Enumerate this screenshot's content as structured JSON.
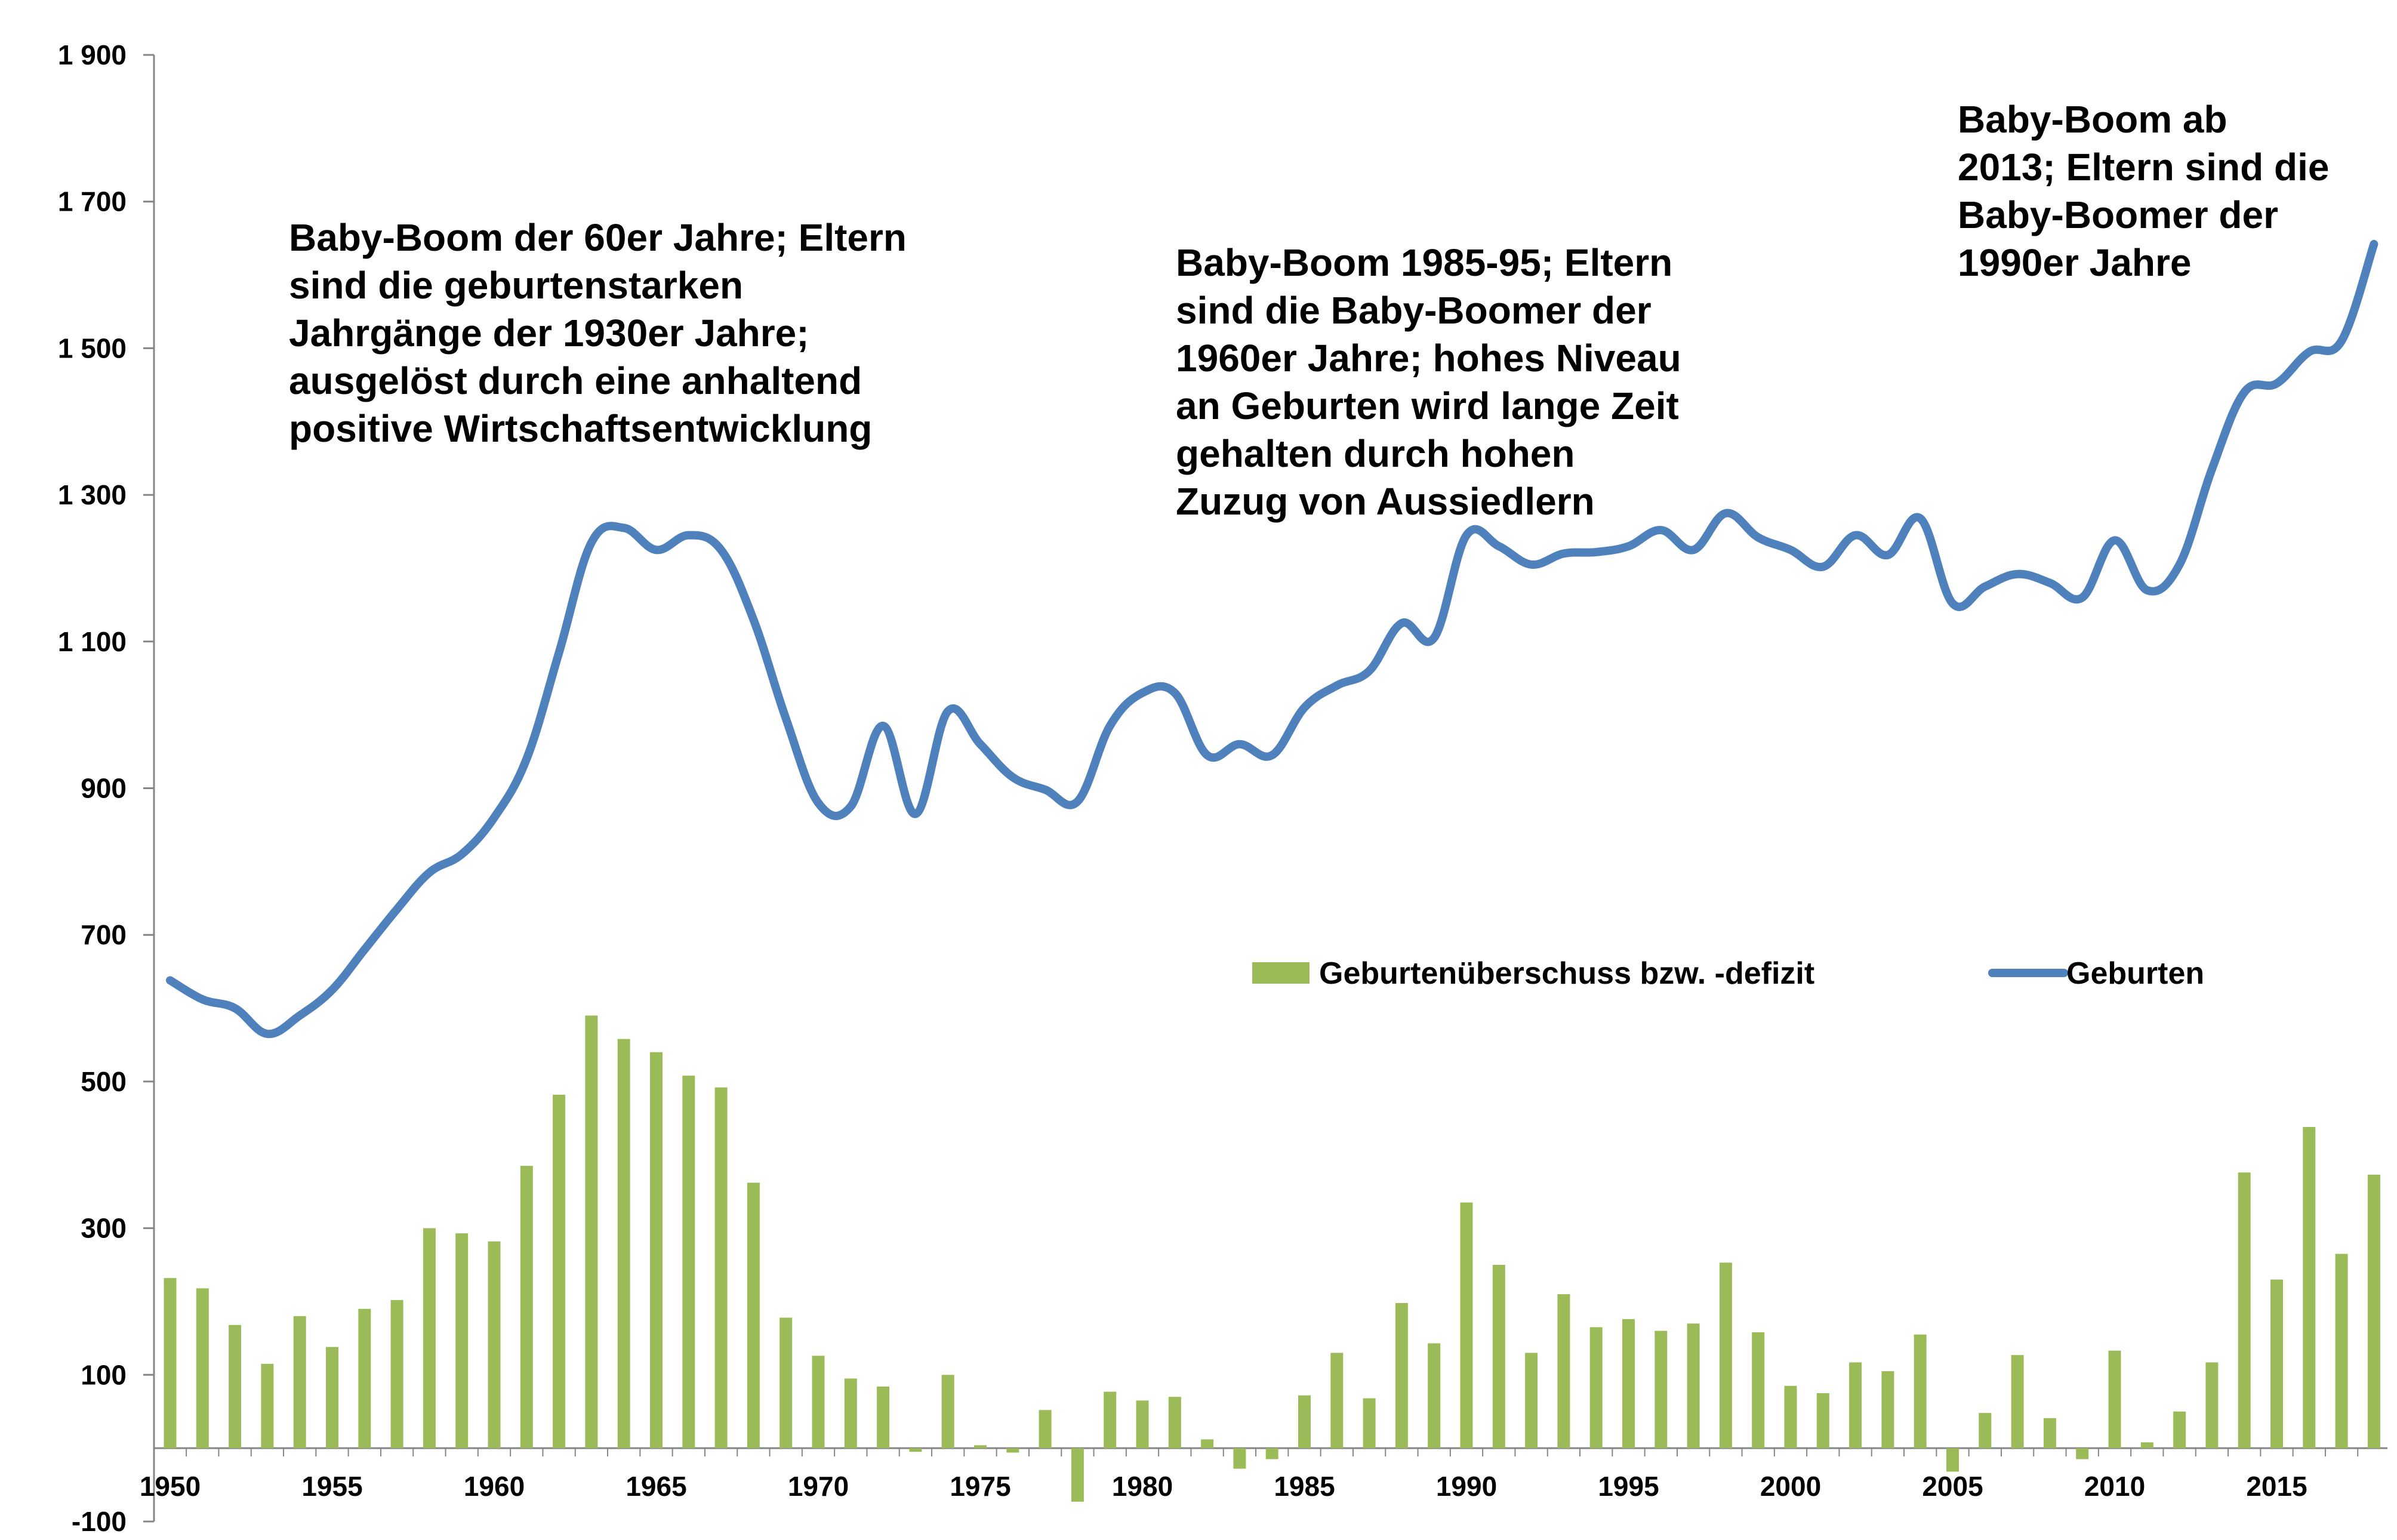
{
  "chart_data": {
    "type": "bar+line",
    "x": [
      1950,
      1951,
      1952,
      1953,
      1954,
      1955,
      1956,
      1957,
      1958,
      1959,
      1960,
      1961,
      1962,
      1963,
      1964,
      1965,
      1966,
      1967,
      1968,
      1969,
      1970,
      1971,
      1972,
      1973,
      1974,
      1975,
      1976,
      1977,
      1978,
      1979,
      1980,
      1981,
      1982,
      1983,
      1984,
      1985,
      1986,
      1987,
      1988,
      1989,
      1990,
      1991,
      1992,
      1993,
      1994,
      1995,
      1996,
      1997,
      1998,
      1999,
      2000,
      2001,
      2002,
      2003,
      2004,
      2005,
      2006,
      2007,
      2008,
      2009,
      2010,
      2011,
      2012,
      2013,
      2014,
      2015,
      2016,
      2017,
      2018
    ],
    "x_ticks": [
      "1950",
      "1955",
      "1960",
      "1965",
      "1970",
      "1975",
      "1980",
      "1985",
      "1990",
      "1995",
      "2000",
      "2005",
      "2010",
      "2015"
    ],
    "y_ticks": [
      "1 900",
      "1 700",
      "1 500",
      "1 300",
      "1 100",
      "900",
      "700",
      "500",
      "300",
      "100",
      "-100"
    ],
    "ylim": [
      -100,
      1900
    ],
    "series": [
      {
        "name": "Geburtenüberschuss bzw. -defizit",
        "kind": "bar",
        "color": "#9bbb59",
        "values": [
          232,
          218,
          168,
          115,
          180,
          138,
          190,
          202,
          300,
          293,
          282,
          385,
          482,
          590,
          558,
          540,
          508,
          492,
          362,
          178,
          126,
          95,
          84,
          -5,
          100,
          4,
          -6,
          52,
          -73,
          77,
          65,
          70,
          12,
          -28,
          -15,
          72,
          130,
          68,
          198,
          143,
          335,
          250,
          130,
          210,
          165,
          176,
          160,
          170,
          253,
          158,
          85,
          75,
          117,
          105,
          155,
          -32,
          48,
          127,
          41,
          -15,
          133,
          8,
          50,
          117,
          376,
          230,
          438,
          265,
          373
        ]
      },
      {
        "name": "Geburten",
        "kind": "line",
        "color": "#4f81bd",
        "values": [
          638,
          612,
          600,
          565,
          590,
          625,
          680,
          735,
          785,
          810,
          860,
          940,
          1085,
          1235,
          1255,
          1225,
          1245,
          1225,
          1130,
          995,
          880,
          875,
          985,
          865,
          1005,
          960,
          915,
          898,
          882,
          985,
          1030,
          1030,
          945,
          960,
          945,
          1010,
          1040,
          1060,
          1125,
          1105,
          1245,
          1230,
          1205,
          1220,
          1222,
          1230,
          1252,
          1225,
          1275,
          1242,
          1225,
          1202,
          1245,
          1218,
          1268,
          1152,
          1175,
          1192,
          1180,
          1160,
          1238,
          1170,
          1205,
          1335,
          1440,
          1452,
          1495,
          1510,
          1642
        ]
      }
    ],
    "annotations": [
      [
        "Baby-Boom der 60er Jahre; Eltern",
        "sind die geburtenstarken",
        "Jahrgänge der 1930er Jahre;",
        "ausgelöst durch eine anhaltend",
        "positive Wirtschaftsentwicklung"
      ],
      [
        "Baby-Boom 1985-95; Eltern",
        "sind die Baby-Boomer der",
        "1960er Jahre; hohes Niveau",
        "an Geburten wird lange Zeit",
        "gehalten durch hohen",
        "Zuzug von Aussiedlern"
      ],
      [
        "Baby-Boom ab",
        "2013; Eltern sind die",
        "Baby-Boomer der",
        "1990er Jahre"
      ]
    ],
    "legend_position": "center-right",
    "grid": false
  }
}
